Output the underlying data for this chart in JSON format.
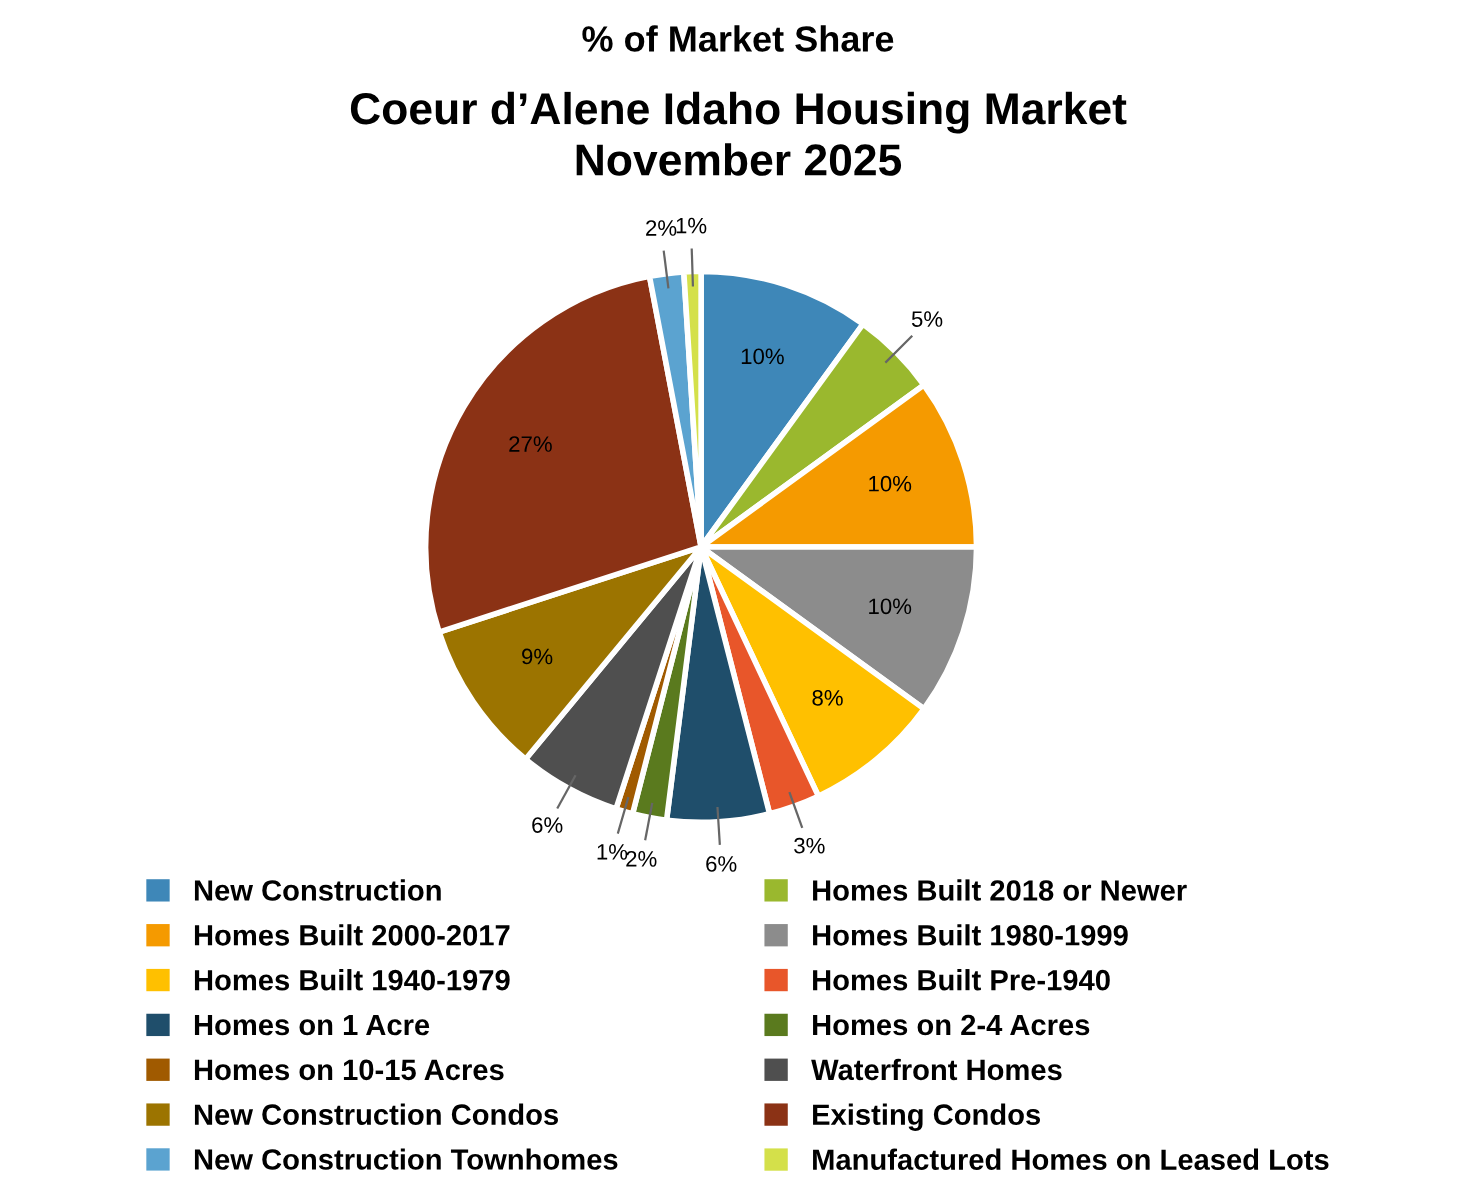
{
  "chart_data": {
    "type": "pie",
    "title": "% of Market Share",
    "subtitle": "Coeur d’Alene Idaho Housing Market\nNovember 2025",
    "categories": [
      "New Construction",
      "Homes Built 2018 or Newer",
      "Homes Built 2000-2017",
      "Homes Built 1980-1999",
      "Homes Built 1940-1979",
      "Homes Built Pre-1940",
      "Homes on 1 Acre",
      "Homes on 2-4 Acres",
      "Homes on 10-15 Acres",
      "Waterfront Homes",
      "New Construction Condos",
      "Existing Condos",
      "New Construction Townhomes",
      "Manufactured Homes on Leased Lots"
    ],
    "values": [
      10,
      5,
      10,
      10,
      8,
      3,
      6,
      2,
      1,
      6,
      9,
      27,
      2,
      1
    ],
    "colors": [
      "#3e87b8",
      "#9ab82e",
      "#f59a00",
      "#8c8c8c",
      "#ffc000",
      "#e8562a",
      "#1f4e6b",
      "#5a7a1e",
      "#a05a00",
      "#4f4f4f",
      "#9c7400",
      "#8b3215",
      "#5ba3d0",
      "#d4e04a"
    ],
    "value_labels": [
      "10%",
      "5%",
      "10%",
      "10%",
      "8%",
      "3%",
      "6%",
      "2%",
      "1%",
      "6%",
      "9%",
      "27%",
      "2%",
      "1%"
    ],
    "legend": "bottom"
  }
}
